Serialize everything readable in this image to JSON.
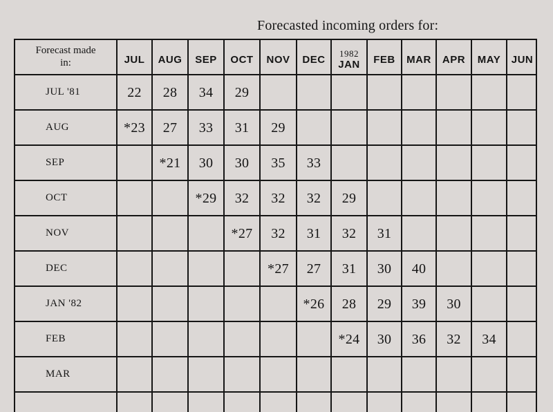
{
  "title": "Forecasted incoming orders for:",
  "corner_label_line1": "Forecast made",
  "corner_label_line2": "in:",
  "columns": [
    {
      "label": "JUL"
    },
    {
      "label": "AUG"
    },
    {
      "label": "SEP"
    },
    {
      "label": "OCT"
    },
    {
      "label": "NOV"
    },
    {
      "label": "DEC"
    },
    {
      "year": "1982",
      "label": "JAN"
    },
    {
      "label": "FEB"
    },
    {
      "label": "MAR"
    },
    {
      "label": "APR"
    },
    {
      "label": "MAY"
    },
    {
      "label": "JUN"
    }
  ],
  "rows": [
    {
      "label": "JUL '81",
      "cells": [
        "22",
        "28",
        "34",
        "29",
        "",
        "",
        "",
        "",
        "",
        "",
        "",
        ""
      ]
    },
    {
      "label": "AUG",
      "cells": [
        "*23",
        "27",
        "33",
        "31",
        "29",
        "",
        "",
        "",
        "",
        "",
        "",
        ""
      ]
    },
    {
      "label": "SEP",
      "cells": [
        "",
        "*21",
        "30",
        "30",
        "35",
        "33",
        "",
        "",
        "",
        "",
        "",
        ""
      ]
    },
    {
      "label": "OCT",
      "cells": [
        "",
        "",
        "*29",
        "32",
        "32",
        "32",
        "29",
        "",
        "",
        "",
        "",
        ""
      ]
    },
    {
      "label": "NOV",
      "cells": [
        "",
        "",
        "",
        "*27",
        "32",
        "31",
        "32",
        "31",
        "",
        "",
        "",
        ""
      ]
    },
    {
      "label": "DEC",
      "cells": [
        "",
        "",
        "",
        "",
        "*27",
        "27",
        "31",
        "30",
        "40",
        "",
        "",
        ""
      ]
    },
    {
      "label": "JAN '82",
      "cells": [
        "",
        "",
        "",
        "",
        "",
        "*26",
        "28",
        "29",
        "39",
        "30",
        "",
        ""
      ]
    },
    {
      "label": "FEB",
      "cells": [
        "",
        "",
        "",
        "",
        "",
        "",
        "*24",
        "30",
        "36",
        "32",
        "34",
        ""
      ]
    },
    {
      "label": "MAR",
      "cells": [
        "",
        "",
        "",
        "",
        "",
        "",
        "",
        "",
        "",
        "",
        "",
        ""
      ]
    }
  ]
}
